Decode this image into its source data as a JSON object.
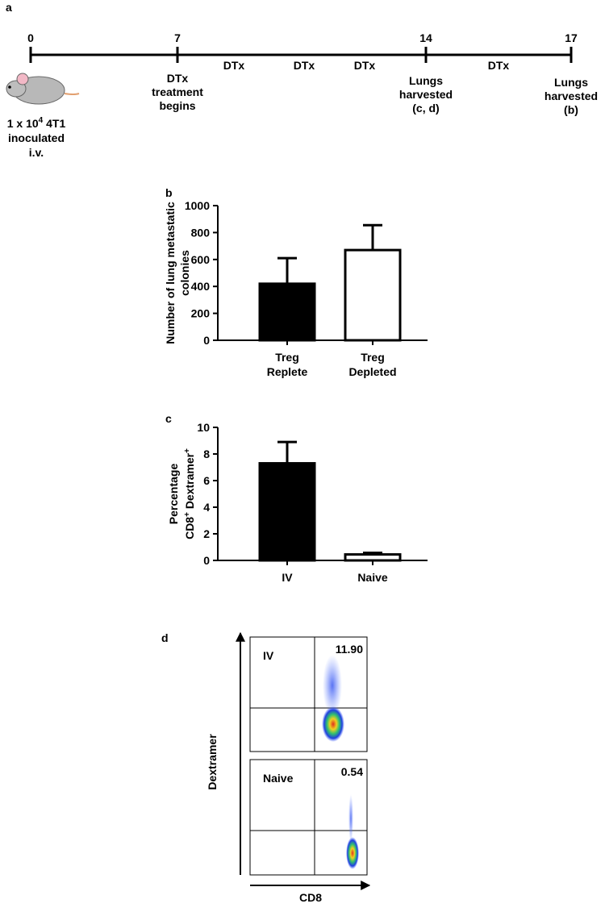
{
  "panel_labels": [
    "a",
    "b",
    "c",
    "d"
  ],
  "timeline": {
    "days": [
      0,
      7,
      14,
      17
    ],
    "events": [
      [
        "DTx",
        "treatment",
        "begins"
      ],
      [
        "Lungs",
        "harvested",
        "(c, d)"
      ],
      [
        "Lungs",
        "harvested",
        "(b)"
      ]
    ],
    "doses": [
      "DTx",
      "DTx",
      "DTx",
      "DTx"
    ],
    "inoculation": {
      "line1": [
        "1 x 10",
        "4",
        " 4T1"
      ],
      "line2": "inoculated",
      "line3": "i.v."
    }
  },
  "chart_data": [
    {
      "type": "bar",
      "y_label": [
        "Number of lung metastatic",
        "colonies"
      ],
      "categories": [
        "Treg Replete",
        "Treg Depleted"
      ],
      "values": [
        420,
        670
      ],
      "errors": [
        190,
        185
      ],
      "colors": [
        "#000000",
        "#ffffff"
      ],
      "ylim": [
        0,
        1000
      ],
      "yticks": [
        0,
        200,
        400,
        600,
        800,
        1000
      ]
    },
    {
      "type": "bar",
      "y_label": [
        "Percentage",
        "CD8",
        "+",
        " Dextramer",
        "+"
      ],
      "categories": [
        "IV",
        "Naive"
      ],
      "values": [
        7.3,
        0.45
      ],
      "errors": [
        1.6,
        0.12
      ],
      "colors": [
        "#000000",
        "#ffffff"
      ],
      "ylim": [
        0,
        10
      ],
      "yticks": [
        0,
        2,
        4,
        6,
        8,
        10
      ]
    }
  ],
  "flow": {
    "plots": [
      {
        "name": "IV",
        "percent": "11.90"
      },
      {
        "name": "Naive",
        "percent": "0.54"
      }
    ],
    "y_axis": "Dextramer",
    "x_axis": "CD8"
  }
}
